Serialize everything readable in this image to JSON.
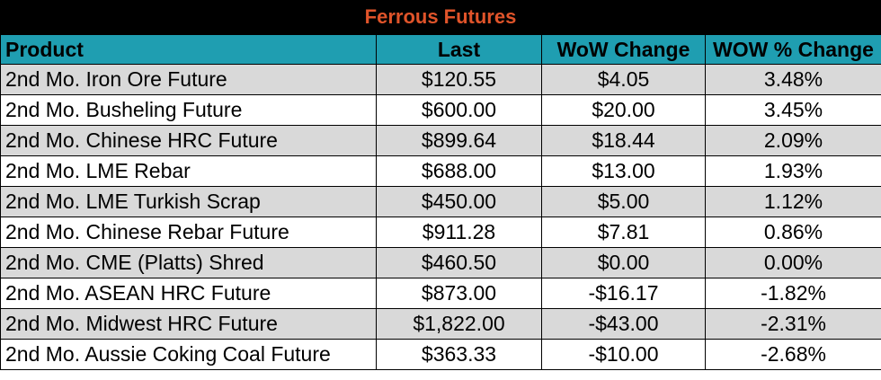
{
  "title": "Ferrous Futures",
  "headers": {
    "product": "Product",
    "last": "Last",
    "wow_change": "WoW Change",
    "wow_pct": "WOW % Change"
  },
  "rows": [
    {
      "product": "2nd Mo. Iron Ore Future",
      "last": "$120.55",
      "wow_change": "$4.05",
      "wow_pct": "3.48%"
    },
    {
      "product": "2nd Mo. Busheling Future",
      "last": "$600.00",
      "wow_change": "$20.00",
      "wow_pct": "3.45%"
    },
    {
      "product": "2nd Mo. Chinese HRC Future",
      "last": "$899.64",
      "wow_change": "$18.44",
      "wow_pct": "2.09%"
    },
    {
      "product": "2nd Mo. LME Rebar",
      "last": "$688.00",
      "wow_change": "$13.00",
      "wow_pct": "1.93%"
    },
    {
      "product": "2nd Mo. LME Turkish Scrap",
      "last": "$450.00",
      "wow_change": "$5.00",
      "wow_pct": "1.12%"
    },
    {
      "product": "2nd Mo. Chinese Rebar Future",
      "last": "$911.28",
      "wow_change": "$7.81",
      "wow_pct": "0.86%"
    },
    {
      "product": "2nd Mo. CME (Platts) Shred",
      "last": "$460.50",
      "wow_change": "$0.00",
      "wow_pct": "0.00%"
    },
    {
      "product": "2nd Mo. ASEAN HRC Future",
      "last": "$873.00",
      "wow_change": "-$16.17",
      "wow_pct": "-1.82%"
    },
    {
      "product": "2nd Mo. Midwest HRC Future",
      "last": "$1,822.00",
      "wow_change": "-$43.00",
      "wow_pct": "-2.31%"
    },
    {
      "product": "2nd Mo. Aussie Coking Coal Future",
      "last": "$363.33",
      "wow_change": "-$10.00",
      "wow_pct": "-2.68%"
    }
  ],
  "colors": {
    "title_bg": "#000000",
    "title_text": "#e0542a",
    "header_bg": "#1f9eb1",
    "row_alt_bg": "#d9d9d9",
    "row_bg": "#ffffff"
  }
}
